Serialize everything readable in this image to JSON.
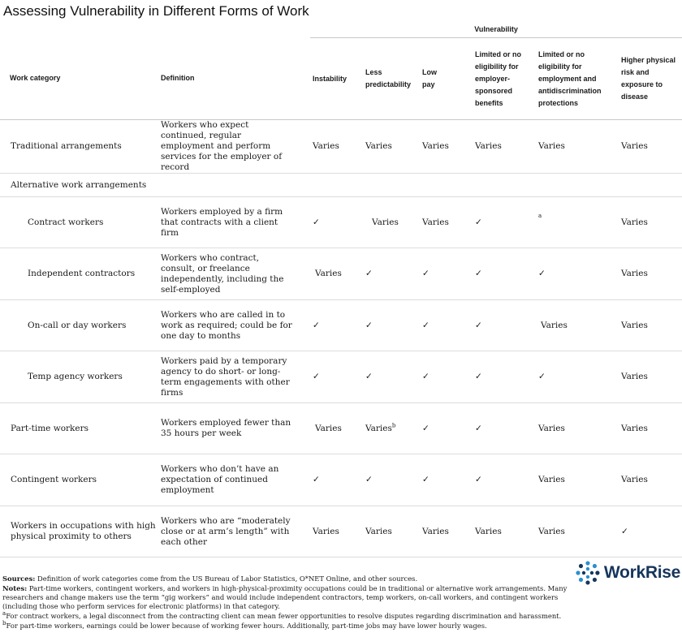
{
  "title": "Assessing Vulnerability in Different Forms of Work",
  "table": {
    "group_header": "Vulnerability",
    "columns": {
      "category": "Work category",
      "definition": "Definition",
      "instability": "Instability",
      "less_predictability": "Less predictability",
      "low_pay": "Low pay",
      "benefits": "Limited or no eligibility for employer-sponsored benefits",
      "protections": "Limited or no eligibility for employment and antidiscrimination protections",
      "physical_risk": "Higher physical risk and exposure to disease"
    },
    "rows": [
      {
        "category": "Traditional arrangements",
        "definition": "Workers who expect continued, regular employment and perform services for the employer of record",
        "instability": "Varies",
        "less_predictability": "Varies",
        "low_pay": "Varies",
        "benefits": "Varies",
        "protections": "Varies",
        "physical_risk": "Varies"
      },
      {
        "category": "Alternative work arrangements"
      },
      {
        "category": "Contract workers",
        "definition": "Workers employed by a firm that contracts with a client firm",
        "instability": "✓",
        "less_predictability": "Varies",
        "low_pay": "Varies",
        "benefits": "✓",
        "protections_note": "a",
        "physical_risk": "Varies"
      },
      {
        "category": "Independent contractors",
        "definition": "Workers who contract, consult, or freelance independently, including the self-employed",
        "instability": "Varies",
        "less_predictability": "✓",
        "low_pay": "✓",
        "benefits": "✓",
        "protections": "✓",
        "physical_risk": "Varies"
      },
      {
        "category": "On-call or day workers",
        "definition": "Workers who are called in to work as required; could be for one day to months",
        "instability": "✓",
        "less_predictability": "✓",
        "low_pay": "✓",
        "benefits": "✓",
        "protections": "Varies",
        "physical_risk": "Varies"
      },
      {
        "category": "Temp agency workers",
        "definition": "Workers paid by a temporary agency to do short- or long-term engagements with other firms",
        "instability": "✓",
        "less_predictability": "✓",
        "low_pay": "✓",
        "benefits": "✓",
        "protections": "✓",
        "physical_risk": "Varies"
      },
      {
        "category": "Part-time workers",
        "definition": "Workers employed fewer than 35 hours per week",
        "instability": "Varies",
        "less_predictability": "Varies",
        "less_predictability_note": "b",
        "low_pay": "✓",
        "benefits": "✓",
        "protections": "Varies",
        "physical_risk": "Varies"
      },
      {
        "category": "Contingent workers",
        "definition": "Workers who don’t have an expectation of continued employment",
        "instability": "✓",
        "less_predictability": "✓",
        "low_pay": "✓",
        "benefits": "✓",
        "protections": "Varies",
        "physical_risk": "Varies"
      },
      {
        "category": "Workers in occupations with high physical proximity to others",
        "definition": "Workers who are “moderately close or at arm’s length” with each other",
        "instability": "Varies",
        "less_predictability": "Varies",
        "low_pay": "Varies",
        "benefits": "Varies",
        "protections": "Varies",
        "physical_risk": "✓"
      }
    ]
  },
  "notes": {
    "sources_label": "Sources:",
    "sources_text": " Definition of work categories come from the US Bureau of Labor Statistics, O*NET Online, and other sources.",
    "notes_label": "Notes:",
    "notes_text": " Part-time workers, contingent workers, and workers in high-physical-proximity occupations could be in traditional or alternative work arrangements. Many researchers and change makers use the term “gig workers” and would include independent contractors, temp workers, on-call workers, and contingent workers (including those who perform services for electronic platforms) in that category.",
    "footnote_a_mark": "a",
    "footnote_a": "For contract workers, a legal disconnect from the contracting client can mean fewer opportunities to resolve disputes regarding discrimination and harassment.",
    "footnote_b_mark": "b",
    "footnote_b": "For part-time workers, earnings could be lower because of working fewer hours. Additionally, part-time jobs may have lower hourly wages."
  },
  "logo": {
    "text": "WorkRise",
    "icon": "workrise-dots-logo-icon",
    "color_dark": "#16365c",
    "color_accent": "#2a8fd0"
  }
}
